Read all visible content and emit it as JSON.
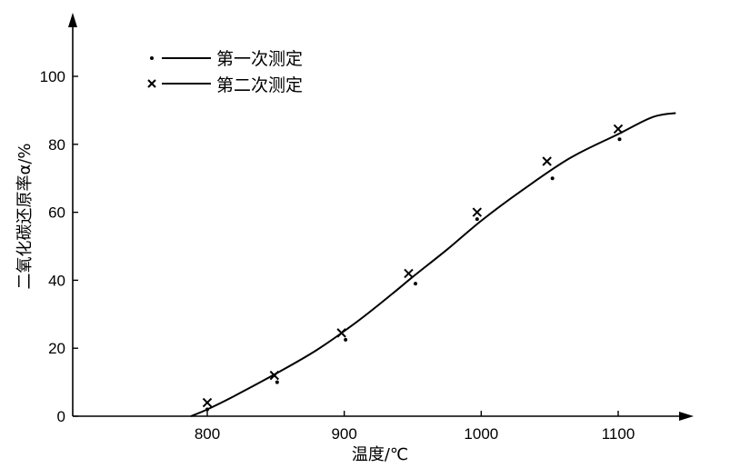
{
  "chart_data": {
    "type": "scatter",
    "xlabel": "温度/℃",
    "ylabel": "二氧化碳还原率α/%",
    "xlim": [
      710,
      1160
    ],
    "ylim": [
      0,
      118
    ],
    "x_ticks": [
      800,
      900,
      1000,
      1100
    ],
    "y_ticks": [
      0,
      20,
      40,
      60,
      80,
      100
    ],
    "grid": false,
    "legend_position": "top-left",
    "series": [
      {
        "name": "第一次测定",
        "marker": "dot",
        "x": [
          800,
          851,
          901,
          952,
          997,
          1052,
          1101
        ],
        "y": [
          2,
          10,
          22.5,
          39,
          58,
          70,
          81.5
        ]
      },
      {
        "name": "第二次测定",
        "marker": "x",
        "x": [
          800,
          849,
          898,
          947,
          997,
          1048,
          1100
        ],
        "y": [
          4,
          12,
          24.5,
          42,
          60,
          75,
          84.5
        ]
      }
    ],
    "fit_curve": {
      "x": [
        788,
        800,
        820,
        850,
        880,
        910,
        935,
        950,
        975,
        1000,
        1030,
        1065,
        1100,
        1125,
        1142
      ],
      "y": [
        0,
        2,
        6,
        12.5,
        19.5,
        28,
        36,
        41,
        49,
        57.5,
        66.5,
        76,
        83,
        88,
        89.2
      ]
    }
  }
}
